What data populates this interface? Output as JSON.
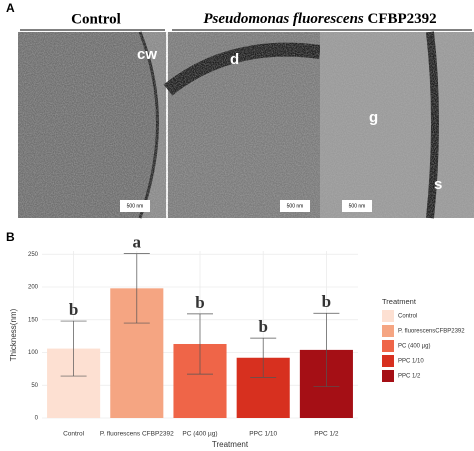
{
  "panel_a": {
    "label": "A",
    "control_heading": "Control",
    "treated_heading_italic": "Pseudomonas fluorescens",
    "treated_heading_rest": " CFBP2392",
    "image_labels": [
      "cw",
      "d",
      "g",
      "s"
    ],
    "scale_bars": [
      "500 nm",
      "500 nm",
      "500 nm"
    ]
  },
  "chart_data": {
    "type": "bar",
    "panel_label": "B",
    "categories": [
      "Control",
      "P. fluorescens CFBP2392",
      "PC (400 µg)",
      "PPC 1/10",
      "PPC 1/2"
    ],
    "values": [
      106,
      198,
      113,
      92,
      104
    ],
    "errors": [
      42,
      53,
      46,
      30,
      56
    ],
    "significance_letters": [
      "b",
      "a",
      "b",
      "b",
      "b"
    ],
    "colors": [
      "#fde0d2",
      "#f5a582",
      "#ef6548",
      "#d7301f",
      "#a50f15"
    ],
    "x_label": "Treatment",
    "y_label": "Thickness(nm)",
    "ylim": [
      0,
      255
    ],
    "yticks": [
      0,
      50,
      100,
      150,
      200,
      250
    ],
    "grid": true,
    "legend": {
      "title": "Treatment",
      "labels": [
        "Control",
        "P. fluorescensCFBP2392",
        "PC (400 µg)",
        "PPC 1/10",
        "PPC 1/2"
      ],
      "position": "right"
    }
  }
}
